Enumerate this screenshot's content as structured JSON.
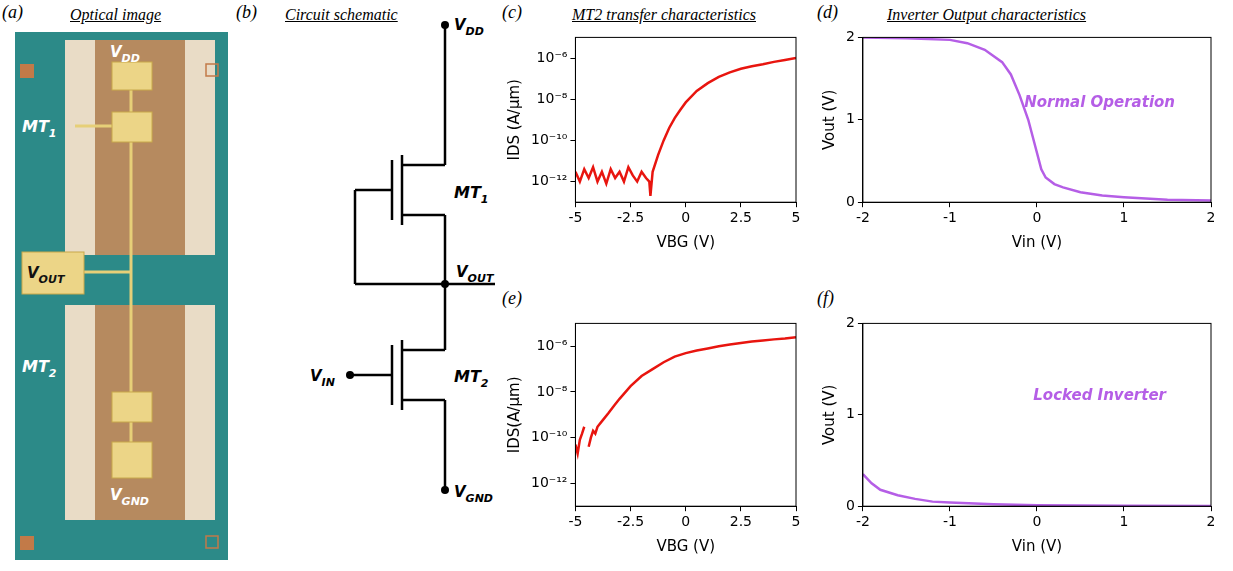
{
  "diagrams": [
    {
      "panel": "(a)",
      "title": "Optical image",
      "labels": {
        "vdd": {
          "text": "V",
          "sub": "DD"
        },
        "mt1": {
          "text": "MT",
          "sub": "1"
        },
        "vout": {
          "text": "V",
          "sub": "OUT"
        },
        "mt2": {
          "text": "MT",
          "sub": "2"
        },
        "vgnd": {
          "text": "V",
          "sub": "GND"
        }
      }
    },
    {
      "panel": "(b)",
      "title": "Circuit schematic",
      "labels": {
        "vdd": {
          "text": "V",
          "sub": "DD"
        },
        "mt1": {
          "text": "MT",
          "sub": "1"
        },
        "vout": {
          "text": "V",
          "sub": "OUT"
        },
        "vin": {
          "text": "V",
          "sub": "IN"
        },
        "mt2": {
          "text": "MT",
          "sub": "2"
        },
        "vgnd": {
          "text": "V",
          "sub": "GND"
        }
      }
    }
  ],
  "chart_data": [
    {
      "panel": "(c)",
      "title": "MT2 transfer characteristics",
      "type": "line",
      "x_label": "VBG (V)",
      "y_label": "IDS (A/μm)",
      "x": [
        -5,
        -4.8,
        -4.6,
        -4.4,
        -4.2,
        -4,
        -3.8,
        -3.6,
        -3.4,
        -3.2,
        -3,
        -2.8,
        -2.6,
        -2.4,
        -2.2,
        -2,
        -1.8,
        -1.65,
        -1.6,
        -1.5,
        -1.25,
        -1,
        -0.75,
        -0.5,
        -0.25,
        0,
        0.5,
        1,
        1.5,
        2,
        2.5,
        3,
        3.5,
        4,
        4.5,
        5
      ],
      "series": [
        {
          "color": "#e8150f",
          "values": [
            3e-12,
            1e-12,
            4e-12,
            1.5e-12,
            5e-12,
            1e-12,
            3e-12,
            8e-13,
            4e-12,
            1.5e-12,
            3e-12,
            1e-12,
            5e-12,
            2e-12,
            1e-12,
            3e-12,
            1.5e-12,
            1e-12,
            2e-13,
            3e-12,
            2e-11,
            1e-10,
            4e-10,
            1.2e-09,
            3e-09,
            7e-09,
            2.5e-08,
            6e-08,
            1.2e-07,
            2e-07,
            3e-07,
            4e-07,
            5e-07,
            6.5e-07,
            8e-07,
            1e-06
          ]
        }
      ],
      "xlim": [
        -5,
        5
      ],
      "xticks": [
        -5,
        -2.5,
        0,
        2.5,
        5
      ],
      "ylim": [
        1e-13,
        1e-05
      ],
      "yticks": [
        {
          "value": 1e-12,
          "label": "10⁻¹²"
        },
        {
          "value": 1e-10,
          "label": "10⁻¹⁰"
        },
        {
          "value": 1e-08,
          "label": "10⁻⁸"
        },
        {
          "value": 1e-06,
          "label": "10⁻⁶"
        }
      ],
      "log": "y",
      "grid": false
    },
    {
      "panel": "(d)",
      "title": "Inverter Output characteristics",
      "type": "line",
      "x_label": "Vin (V)",
      "y_label": "Vout (V)",
      "annotation": "Normal Operation",
      "x": [
        -2,
        -1.5,
        -1,
        -0.8,
        -0.6,
        -0.4,
        -0.3,
        -0.2,
        -0.1,
        0,
        0.05,
        0.1,
        0.2,
        0.3,
        0.5,
        0.75,
        1,
        1.5,
        2
      ],
      "series": [
        {
          "color": "#b55ee6",
          "values": [
            2,
            1.99,
            1.97,
            1.93,
            1.85,
            1.7,
            1.55,
            1.3,
            1.0,
            0.6,
            0.4,
            0.3,
            0.22,
            0.18,
            0.12,
            0.08,
            0.06,
            0.03,
            0.02
          ]
        }
      ],
      "xlim": [
        -2,
        2
      ],
      "xticks": [
        -2,
        -1,
        0,
        1,
        2
      ],
      "ylim": [
        0,
        2
      ],
      "yticks": [
        0,
        1,
        2
      ],
      "grid": false
    },
    {
      "panel": "(e)",
      "type": "line",
      "x_label": "VBG (V)",
      "y_label": "IDS(A/μm)",
      "x": [
        -5,
        -4.9,
        -4.8,
        -4.7,
        -4.6,
        -4.5,
        -4.4,
        -4.3,
        -4.2,
        -4.1,
        -4,
        -3.75,
        -3.5,
        -3.25,
        -3,
        -2.5,
        -2,
        -1.5,
        -1,
        -0.5,
        0,
        0.5,
        1,
        1.5,
        2,
        2.5,
        3,
        3.5,
        4,
        4.5,
        5
      ],
      "series": [
        {
          "color": "#e8150f",
          "values": [
            5e-11,
            2e-11,
            8e-11,
            1.5e-10,
            3e-10,
            null,
            4e-11,
            1e-10,
            2e-10,
            1.5e-10,
            3e-10,
            6e-10,
            1.2e-09,
            2.5e-09,
            5e-09,
            1.8e-08,
            5e-08,
            1e-07,
            2e-07,
            3.5e-07,
            5e-07,
            6.5e-07,
            8e-07,
            1e-06,
            1.2e-06,
            1.4e-06,
            1.6e-06,
            1.8e-06,
            2e-06,
            2.2e-06,
            2.5e-06
          ]
        }
      ],
      "xlim": [
        -5,
        5
      ],
      "xticks": [
        -5,
        -2.5,
        0,
        2.5,
        5
      ],
      "ylim": [
        1e-13,
        1e-05
      ],
      "yticks": [
        {
          "value": 1e-12,
          "label": "10⁻¹²"
        },
        {
          "value": 1e-10,
          "label": "10⁻¹⁰"
        },
        {
          "value": 1e-08,
          "label": "10⁻⁸"
        },
        {
          "value": 1e-06,
          "label": "10⁻⁶"
        }
      ],
      "log": "y",
      "grid": false
    },
    {
      "panel": "(f)",
      "type": "line",
      "x_label": "Vin (V)",
      "y_label": "Vout (V)",
      "annotation": "Locked Inverter",
      "x": [
        -2,
        -1.9,
        -1.8,
        -1.6,
        -1.4,
        -1.2,
        -1,
        -0.5,
        0,
        1,
        2
      ],
      "series": [
        {
          "color": "#b55ee6",
          "values": [
            0.35,
            0.25,
            0.18,
            0.12,
            0.08,
            0.05,
            0.04,
            0.02,
            0.01,
            0.005,
            0.003
          ]
        }
      ],
      "xlim": [
        -2,
        2
      ],
      "xticks": [
        -2,
        -1,
        0,
        1,
        2
      ],
      "ylim": [
        0,
        2
      ],
      "yticks": [
        0,
        1,
        2
      ],
      "grid": false
    }
  ]
}
